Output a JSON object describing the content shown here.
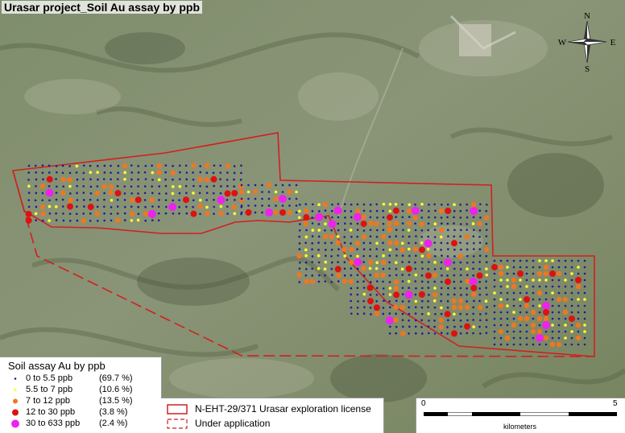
{
  "title": "Urasar project_Soil Au assay by ppb",
  "compass": {
    "n": "N",
    "s": "S",
    "e": "E",
    "w": "W"
  },
  "legend": {
    "title": "Soil assay Au by ppb",
    "classes": [
      {
        "label": "0 to 5.5 ppb",
        "pct": "(69.7 %)",
        "color": "#1c1c9a"
      },
      {
        "label": "5.5 to 7 ppb",
        "pct": "(10.6 %)",
        "color": "#ffff33"
      },
      {
        "label": "7 to 12 ppb",
        "pct": "(13.5 %)",
        "color": "#ee7722"
      },
      {
        "label": "12 to 30 ppb",
        "pct": "(3.8 %)",
        "color": "#dd1111"
      },
      {
        "label": "30 to 633 ppb",
        "pct": "(2.4 %)",
        "color": "#ee22ee"
      }
    ]
  },
  "license_legend": [
    {
      "label": "N-EHT-29/371 Urasar exploration license",
      "style": "solid",
      "color": "#cc2222"
    },
    {
      "label": "Under application",
      "style": "dashed",
      "color": "#cc2222"
    }
  ],
  "scale": {
    "start": "0",
    "end": "5",
    "unit": "kilometers"
  }
}
